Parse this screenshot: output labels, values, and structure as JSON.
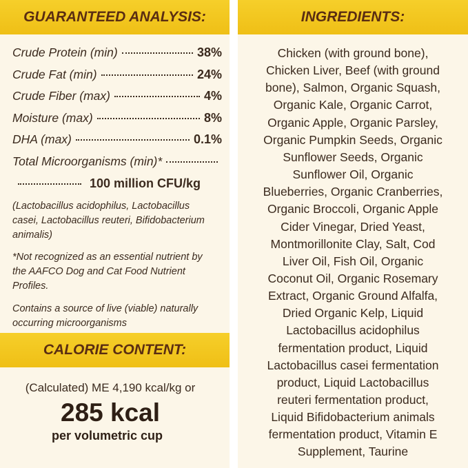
{
  "guaranteed_analysis": {
    "title": "GUARANTEED ANALYSIS:",
    "rows": [
      {
        "label": "Crude Protein (min)",
        "value": "38%"
      },
      {
        "label": "Crude Fat (min)",
        "value": "24%"
      },
      {
        "label": "Crude Fiber (max)",
        "value": "4%"
      },
      {
        "label": "Moisture (max)",
        "value": "8%"
      },
      {
        "label": "DHA (max)",
        "value": "0.1%"
      }
    ],
    "microorganisms": {
      "label": "Total Microorganisms (min)*",
      "value": "100 million CFU/kg"
    },
    "notes": [
      [
        "(Lactobacillus acidophilus, Lactobacillus",
        "casei, Lactobacillus reuteri, Bifidobacterium",
        "animalis)"
      ],
      [
        "*Not recognized as an essential nutrient by",
        "the AAFCO Dog and Cat Food Nutrient",
        "Profiles."
      ],
      [
        "Contains a source of live (viable) naturally",
        "occurring microorganisms"
      ]
    ]
  },
  "calorie_content": {
    "title": "CALORIE CONTENT:",
    "calculated": "(Calculated) ME 4,190 kcal/kg or",
    "kcal": "285 kcal",
    "per": "per volumetric cup"
  },
  "ingredients": {
    "title": "INGREDIENTS:",
    "lines": [
      "Chicken (with ground bone),",
      "Chicken Liver, Beef (with ground",
      "bone), Salmon, Organic Squash,",
      "Organic Kale, Organic Carrot,",
      "Organic Apple, Organic Parsley,",
      "Organic Pumpkin Seeds, Organic",
      "Sunflower Seeds, Organic",
      "Sunflower Oil, Organic",
      "Blueberries, Organic Cranberries,",
      "Organic Broccoli, Organic Apple",
      "Cider Vinegar, Dried Yeast,",
      "Montmorillonite Clay, Salt, Cod",
      "Liver Oil, Fish Oil, Organic",
      "Coconut Oil, Organic Rosemary",
      "Extract, Organic Ground Alfalfa,",
      "Dried Organic Kelp, Liquid",
      "Lactobacillus acidophilus",
      "fermentation product, Liquid",
      "Lactobacillus casei fermentation",
      "product, Liquid Lactobacillus",
      "reuteri fermentation product,",
      "Liquid Bifidobacterium animals",
      "fermentation product, Vitamin E",
      "Supplement, Taurine"
    ]
  }
}
